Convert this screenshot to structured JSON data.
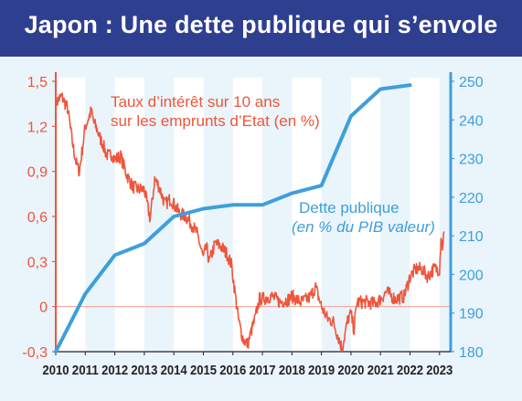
{
  "title": "Japon : Une dette publique qui s’envole",
  "colors": {
    "header": "#2f3f8f",
    "background": "#eaf4fb",
    "rate": "#ef553b",
    "debt": "#3d9fdc"
  },
  "chart_data": {
    "type": "line",
    "grid": "alternating vertical year bands",
    "x_ticks": [
      "2010",
      "2011",
      "2012",
      "2013",
      "2014",
      "2015",
      "2016",
      "2017",
      "2018",
      "2019",
      "2020",
      "2021",
      "2022",
      "2023"
    ],
    "xlim": [
      2010,
      2023.3
    ],
    "y_left": {
      "ticks": [
        "1,5",
        "1,2",
        "0,9",
        "0,6",
        "0,3",
        "0",
        "-0,3"
      ],
      "range": [
        -0.3,
        1.5
      ]
    },
    "y_right": {
      "ticks": [
        "250",
        "240",
        "230",
        "220",
        "210",
        "200",
        "190",
        "180"
      ],
      "range": [
        180,
        250
      ]
    },
    "series": [
      {
        "name": "Taux d’intérêt sur 10 ans sur les emprunts d’Etat (en %)",
        "label_lines": [
          "Taux d’intérêt sur 10 ans",
          "sur les emprunts d’Etat (en %)"
        ],
        "axis": "left",
        "points": [
          [
            2010.0,
            1.35
          ],
          [
            2010.1,
            1.38
          ],
          [
            2010.2,
            1.4
          ],
          [
            2010.3,
            1.36
          ],
          [
            2010.4,
            1.32
          ],
          [
            2010.5,
            1.18
          ],
          [
            2010.6,
            1.05
          ],
          [
            2010.7,
            0.95
          ],
          [
            2010.8,
            0.9
          ],
          [
            2010.9,
            1.05
          ],
          [
            2011.0,
            1.2
          ],
          [
            2011.1,
            1.25
          ],
          [
            2011.2,
            1.3
          ],
          [
            2011.3,
            1.22
          ],
          [
            2011.4,
            1.18
          ],
          [
            2011.5,
            1.12
          ],
          [
            2011.6,
            1.08
          ],
          [
            2011.7,
            1.02
          ],
          [
            2011.8,
            1.0
          ],
          [
            2011.9,
            1.02
          ],
          [
            2012.0,
            0.98
          ],
          [
            2012.2,
            1.0
          ],
          [
            2012.4,
            0.88
          ],
          [
            2012.6,
            0.8
          ],
          [
            2012.8,
            0.78
          ],
          [
            2013.0,
            0.78
          ],
          [
            2013.2,
            0.58
          ],
          [
            2013.35,
            0.85
          ],
          [
            2013.5,
            0.8
          ],
          [
            2013.7,
            0.68
          ],
          [
            2013.9,
            0.72
          ],
          [
            2014.0,
            0.68
          ],
          [
            2014.2,
            0.62
          ],
          [
            2014.4,
            0.6
          ],
          [
            2014.6,
            0.55
          ],
          [
            2014.8,
            0.48
          ],
          [
            2015.0,
            0.32
          ],
          [
            2015.1,
            0.4
          ],
          [
            2015.2,
            0.3
          ],
          [
            2015.4,
            0.42
          ],
          [
            2015.6,
            0.4
          ],
          [
            2015.8,
            0.35
          ],
          [
            2015.95,
            0.28
          ],
          [
            2016.1,
            0.05
          ],
          [
            2016.2,
            -0.1
          ],
          [
            2016.35,
            -0.22
          ],
          [
            2016.5,
            -0.25
          ],
          [
            2016.6,
            -0.18
          ],
          [
            2016.75,
            -0.08
          ],
          [
            2016.9,
            0.05
          ],
          [
            2017.0,
            0.05
          ],
          [
            2017.3,
            0.07
          ],
          [
            2017.6,
            0.03
          ],
          [
            2017.9,
            0.05
          ],
          [
            2018.0,
            0.07
          ],
          [
            2018.3,
            0.03
          ],
          [
            2018.6,
            0.06
          ],
          [
            2018.8,
            0.13
          ],
          [
            2019.0,
            0.0
          ],
          [
            2019.2,
            -0.08
          ],
          [
            2019.4,
            -0.1
          ],
          [
            2019.6,
            -0.22
          ],
          [
            2019.7,
            -0.28
          ],
          [
            2019.8,
            -0.18
          ],
          [
            2019.9,
            -0.08
          ],
          [
            2020.0,
            -0.05
          ],
          [
            2020.1,
            -0.15
          ],
          [
            2020.2,
            0.03
          ],
          [
            2020.5,
            0.03
          ],
          [
            2020.8,
            0.02
          ],
          [
            2021.0,
            0.05
          ],
          [
            2021.2,
            0.1
          ],
          [
            2021.5,
            0.05
          ],
          [
            2021.8,
            0.07
          ],
          [
            2022.0,
            0.2
          ],
          [
            2022.2,
            0.25
          ],
          [
            2022.4,
            0.25
          ],
          [
            2022.6,
            0.2
          ],
          [
            2022.8,
            0.25
          ],
          [
            2023.0,
            0.25
          ],
          [
            2023.05,
            0.48
          ],
          [
            2023.1,
            0.4
          ],
          [
            2023.15,
            0.5
          ]
        ]
      },
      {
        "name": "Dette publique (en % du PIB valeur)",
        "label_lines": [
          "Dette publique",
          "(en % du PIB valeur)"
        ],
        "axis": "right",
        "points": [
          [
            2010,
            180
          ],
          [
            2011,
            195
          ],
          [
            2012,
            205
          ],
          [
            2013,
            208
          ],
          [
            2014,
            215
          ],
          [
            2015,
            217
          ],
          [
            2016,
            218
          ],
          [
            2017,
            218
          ],
          [
            2018,
            221
          ],
          [
            2019,
            223
          ],
          [
            2020,
            241
          ],
          [
            2021,
            248
          ],
          [
            2022,
            249
          ]
        ]
      }
    ]
  }
}
